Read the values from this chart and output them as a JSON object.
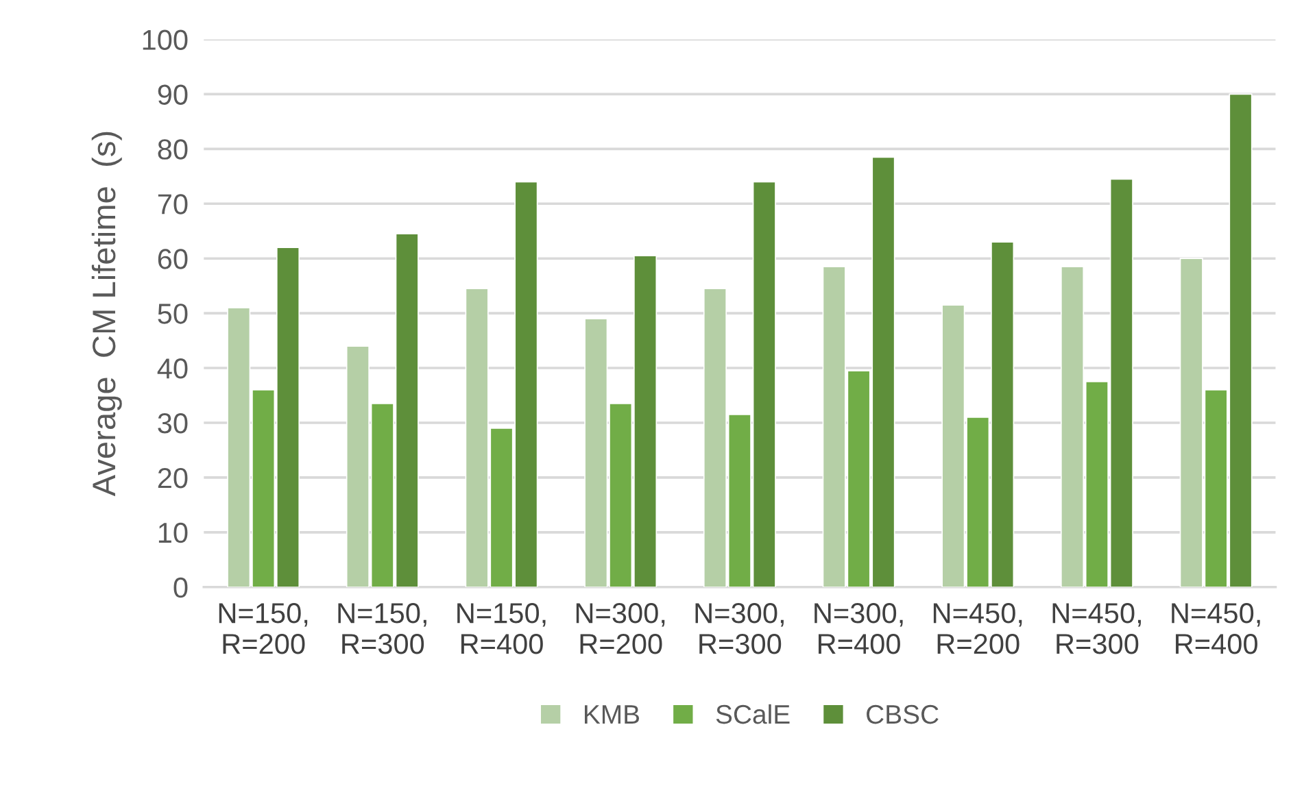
{
  "chart_data": {
    "type": "bar",
    "ylabel": "Average  CM Lifetime  (s)",
    "categories": [
      "N=150,\nR=200",
      "N=150,\nR=300",
      "N=150,\nR=400",
      "N=300,\nR=200",
      "N=300,\nR=300",
      "N=300,\nR=400",
      "N=450,\nR=200",
      "N=450,\nR=300",
      "N=450,\nR=400"
    ],
    "series": [
      {
        "name": "KMB",
        "color": "#b5cfa6",
        "values": [
          51,
          44,
          54.5,
          49,
          54.5,
          58.5,
          51.5,
          58.5,
          60
        ]
      },
      {
        "name": "SCalE",
        "color": "#71ad47",
        "values": [
          36,
          33.5,
          29,
          33.5,
          31.5,
          39.5,
          31,
          37.5,
          36
        ]
      },
      {
        "name": "CBSC",
        "color": "#5e8f3a",
        "values": [
          62,
          64.5,
          74,
          60.5,
          74,
          78.5,
          63,
          74.5,
          90
        ]
      }
    ],
    "ylim": [
      0,
      100
    ],
    "yticks": [
      0,
      10,
      20,
      30,
      40,
      50,
      60,
      70,
      80,
      90,
      100
    ],
    "grid": "y",
    "legend": "bottom"
  }
}
